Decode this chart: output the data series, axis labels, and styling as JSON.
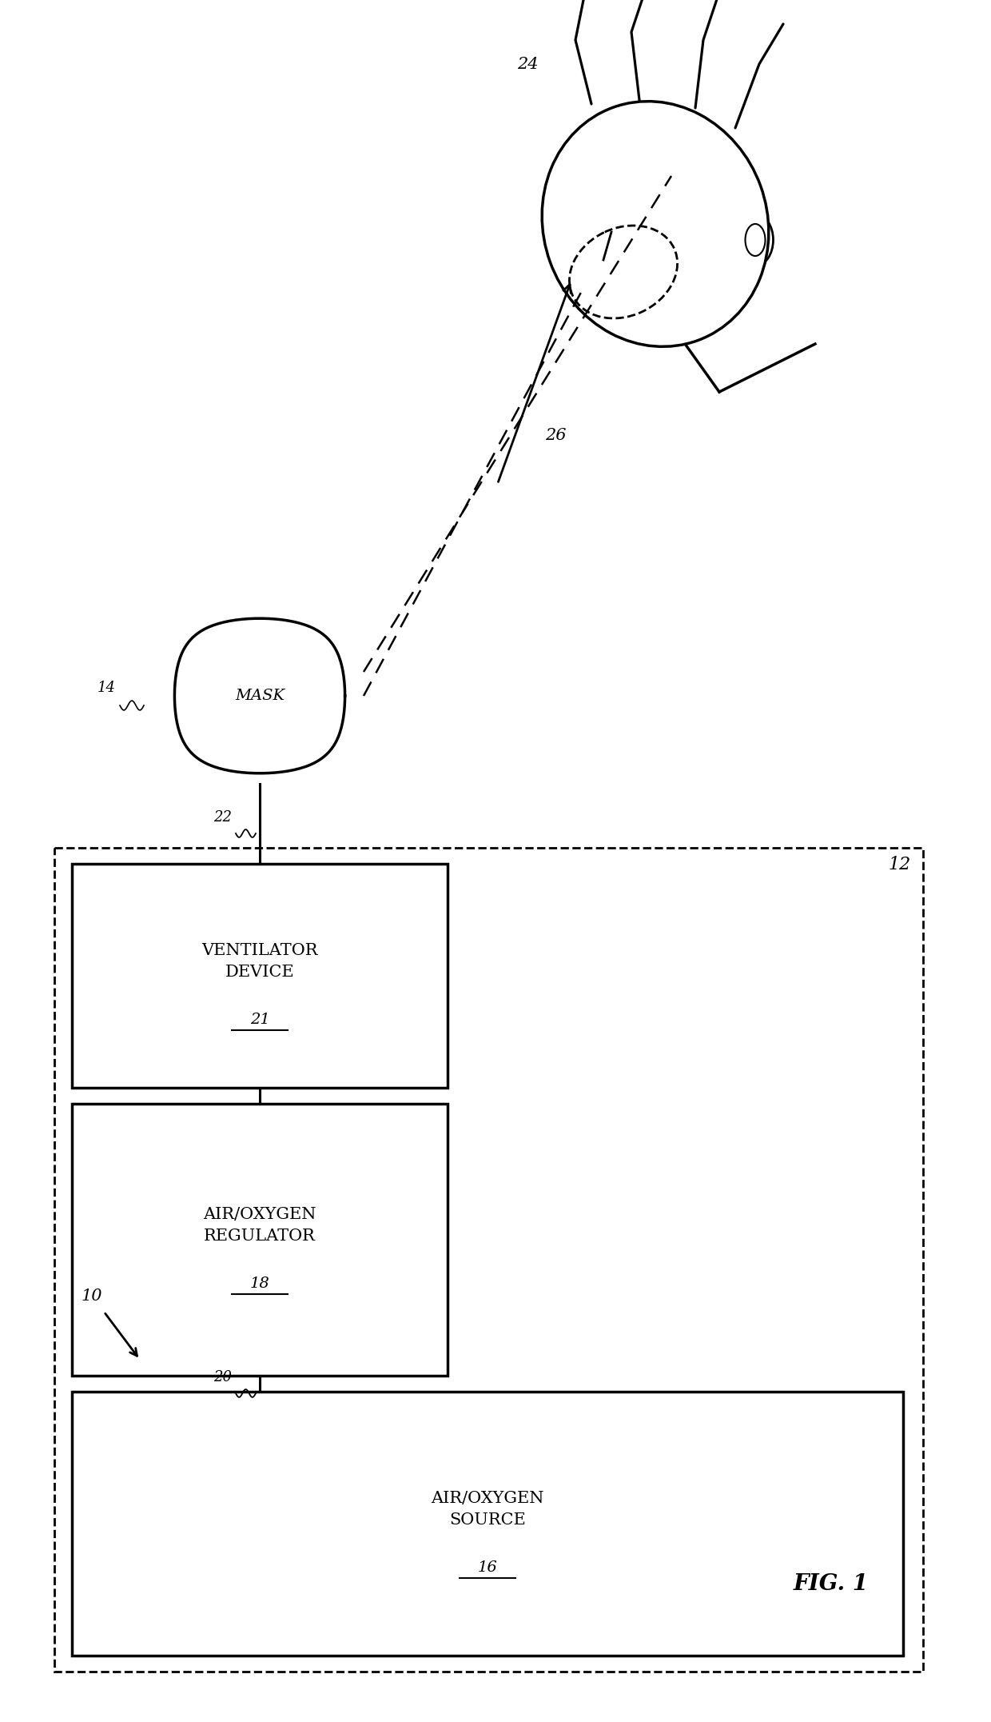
{
  "background_color": "#ffffff",
  "fig_label": "FIG. 1",
  "system_label": "10",
  "outer_box_label": "12",
  "ventilator_label": "VENTILATOR\nDEVICE",
  "ventilator_num": "21",
  "regulator_label": "AIR/OXYGEN\nREGULATOR",
  "regulator_num": "18",
  "source_label": "AIR/OXYGEN\nSOURCE",
  "source_num": "16",
  "mask_label": "MASK",
  "mask_num": "14",
  "patient_num": "24",
  "connection_22": "22",
  "connection_20": "20",
  "dashed_line_num": "26",
  "line_color": "#000000",
  "box_facecolor": "#ffffff",
  "font_size_box": 15,
  "font_size_num": 14,
  "font_size_fig": 20
}
